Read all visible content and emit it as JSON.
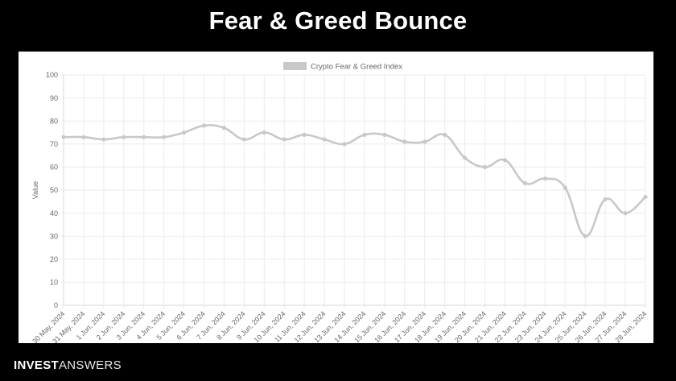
{
  "header": {
    "title": "Fear & Greed Bounce"
  },
  "brand": {
    "strong": "INVEST",
    "light": "ANSWERS"
  },
  "colors": {
    "background": "#000000",
    "panel": "#ffffff",
    "series": "#c8c8c8",
    "grid": "#eeeeee"
  },
  "chart_data": {
    "type": "line",
    "title": "",
    "xlabel": "",
    "ylabel": "Value",
    "ylim": [
      0,
      100
    ],
    "yticks": [
      0,
      10,
      20,
      30,
      40,
      50,
      60,
      70,
      80,
      90,
      100
    ],
    "grid": true,
    "legend_position": "top-center",
    "categories": [
      "30 May, 2024",
      "31 May, 2024",
      "1 Jun, 2024",
      "2 Jun, 2024",
      "3 Jun, 2024",
      "4 Jun, 2024",
      "5 Jun, 2024",
      "6 Jun, 2024",
      "7 Jun, 2024",
      "8 Jun, 2024",
      "9 Jun, 2024",
      "10 Jun, 2024",
      "11 Jun, 2024",
      "12 Jun, 2024",
      "13 Jun, 2024",
      "14 Jun, 2024",
      "15 Jun, 2024",
      "16 Jun, 2024",
      "17 Jun, 2024",
      "18 Jun, 2024",
      "19 Jun, 2024",
      "20 Jun, 2024",
      "21 Jun, 2024",
      "22 Jun, 2024",
      "23 Jun, 2024",
      "24 Jun, 2024",
      "25 Jun, 2024",
      "26 Jun, 2024",
      "27 Jun, 2024",
      "28 Jun, 2024"
    ],
    "series": [
      {
        "name": "Crypto Fear & Greed Index",
        "color": "#c8c8c8",
        "values": [
          73,
          73,
          72,
          73,
          73,
          73,
          75,
          78,
          77,
          72,
          75,
          72,
          74,
          72,
          70,
          74,
          74,
          71,
          71,
          74,
          64,
          60,
          63,
          53,
          55,
          51,
          30,
          46,
          40,
          47
        ]
      }
    ]
  }
}
